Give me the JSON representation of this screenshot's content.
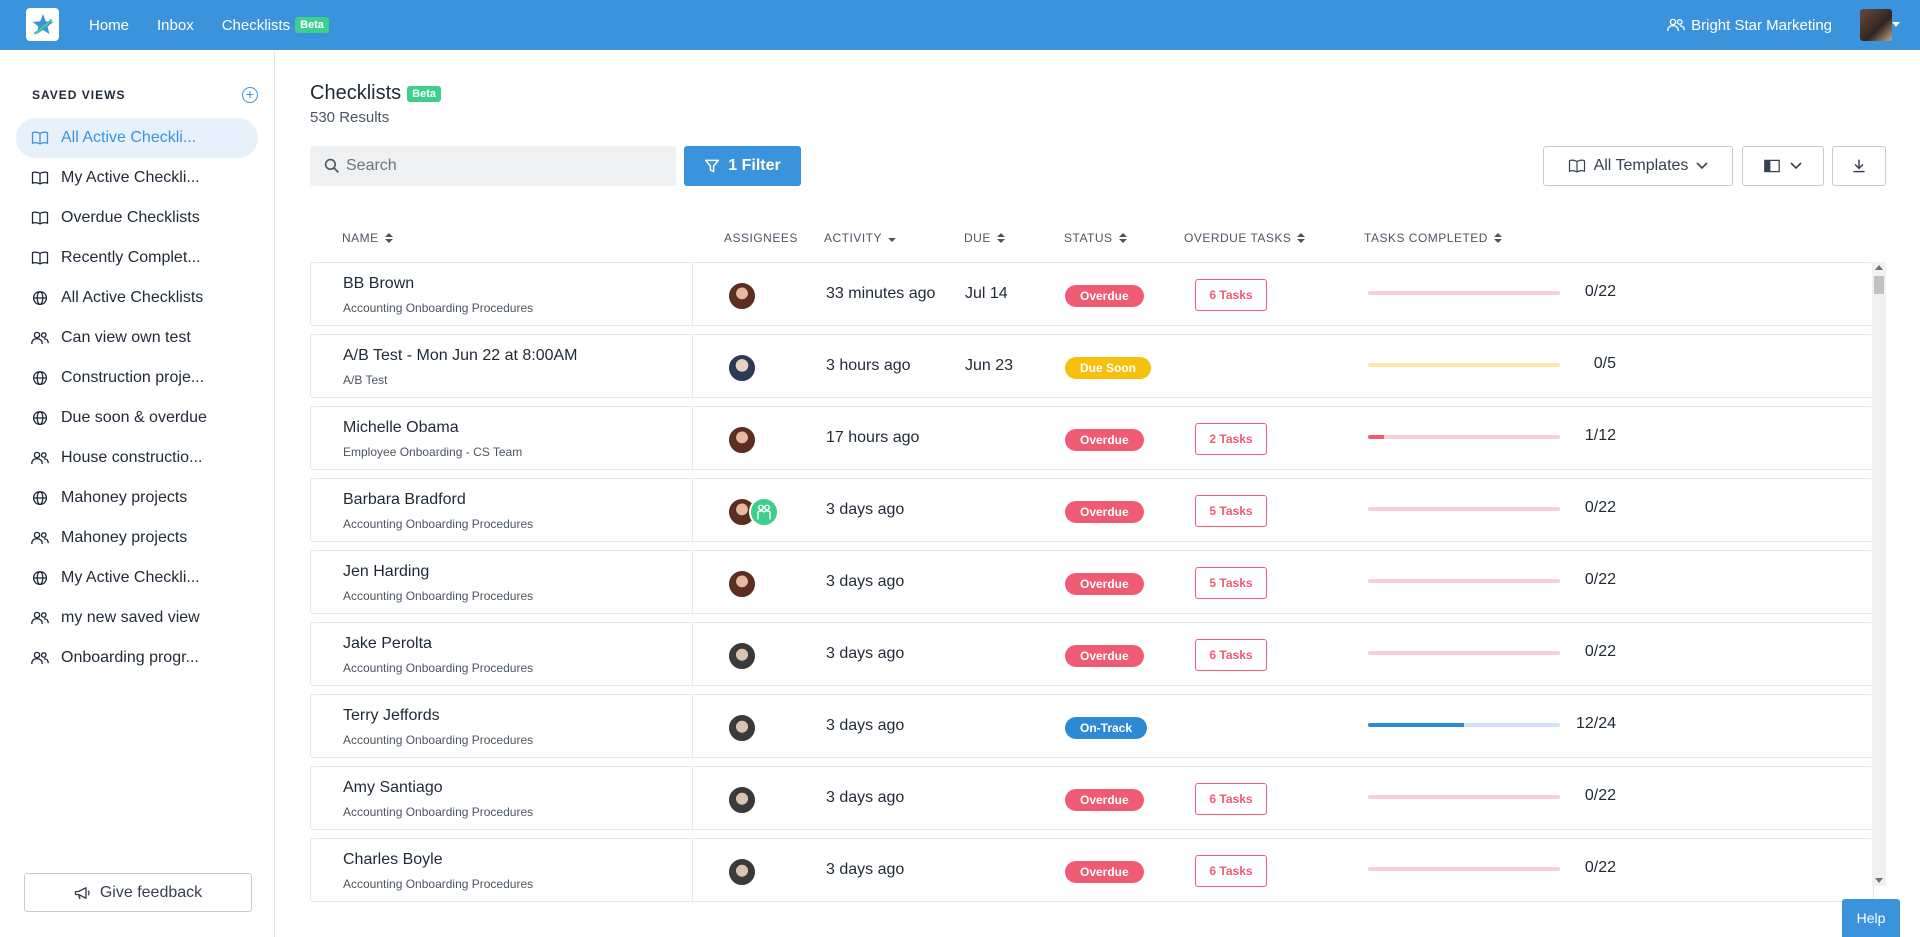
{
  "topbar": {
    "nav": [
      {
        "label": "Home"
      },
      {
        "label": "Inbox"
      },
      {
        "label": "Checklists",
        "badge": "Beta"
      }
    ],
    "org_name": "Bright Star Marketing",
    "accent": "#3b93dc"
  },
  "sidebar": {
    "header": "SAVED VIEWS",
    "items": [
      {
        "label": "All Active Checkli...",
        "icon": "book-icon",
        "active": true
      },
      {
        "label": "My Active Checkli...",
        "icon": "book-icon"
      },
      {
        "label": "Overdue Checklists",
        "icon": "book-icon"
      },
      {
        "label": "Recently Complet...",
        "icon": "book-icon"
      },
      {
        "label": "All Active Checklists",
        "icon": "globe-icon"
      },
      {
        "label": "Can view own test",
        "icon": "users-icon"
      },
      {
        "label": "Construction proje...",
        "icon": "globe-icon"
      },
      {
        "label": "Due soon & overdue",
        "icon": "globe-icon"
      },
      {
        "label": "House constructio...",
        "icon": "users-icon"
      },
      {
        "label": "Mahoney projects",
        "icon": "globe-icon"
      },
      {
        "label": "Mahoney projects",
        "icon": "users-icon"
      },
      {
        "label": "My Active Checkli...",
        "icon": "globe-icon"
      },
      {
        "label": "my new saved view",
        "icon": "users-icon"
      },
      {
        "label": "Onboarding progr...",
        "icon": "users-icon"
      }
    ],
    "feedback_label": "Give feedback"
  },
  "main": {
    "title": "Checklists",
    "title_badge": "Beta",
    "results": "530 Results",
    "search_placeholder": "Search",
    "filter_label": "1 Filter",
    "templates_label": "All Templates",
    "columns": {
      "name": "NAME",
      "assignees": "ASSIGNEES",
      "activity": "ACTIVITY",
      "due": "DUE",
      "status": "STATUS",
      "overdue_tasks": "OVERDUE TASKS",
      "tasks_completed": "TASKS COMPLETED"
    },
    "rows": [
      {
        "name": "BB Brown",
        "template": "Accounting Onboarding Procedures",
        "avatars": [
          "f1"
        ],
        "activity": "33 minutes ago",
        "due": "Jul 14",
        "status": "Overdue",
        "status_kind": "overdue",
        "overdue_tasks": "6 Tasks",
        "completed": "0/22",
        "progress": 0.0
      },
      {
        "name": "A/B Test - Mon Jun 22 at 8:00AM",
        "template": "A/B Test",
        "avatars": [
          "m1"
        ],
        "activity": "3 hours ago",
        "due": "Jun 23",
        "status": "Due Soon",
        "status_kind": "soon",
        "overdue_tasks": "",
        "completed": "0/5",
        "progress": 0.0
      },
      {
        "name": "Michelle Obama",
        "template": "Employee Onboarding - CS Team",
        "avatars": [
          "f1"
        ],
        "activity": "17 hours ago",
        "due": "",
        "status": "Overdue",
        "status_kind": "overdue",
        "overdue_tasks": "2 Tasks",
        "completed": "1/12",
        "progress": 0.083
      },
      {
        "name": "Barbara Bradford",
        "template": "Accounting Onboarding Procedures",
        "avatars": [
          "f1",
          "team"
        ],
        "activity": "3 days ago",
        "due": "",
        "status": "Overdue",
        "status_kind": "overdue",
        "overdue_tasks": "5 Tasks",
        "completed": "0/22",
        "progress": 0.0
      },
      {
        "name": "Jen Harding",
        "template": "Accounting Onboarding Procedures",
        "avatars": [
          "f1"
        ],
        "activity": "3 days ago",
        "due": "",
        "status": "Overdue",
        "status_kind": "overdue",
        "overdue_tasks": "5 Tasks",
        "completed": "0/22",
        "progress": 0.0
      },
      {
        "name": "Jake Perolta",
        "template": "Accounting Onboarding Procedures",
        "avatars": [
          "m2"
        ],
        "activity": "3 days ago",
        "due": "",
        "status": "Overdue",
        "status_kind": "overdue",
        "overdue_tasks": "6 Tasks",
        "completed": "0/22",
        "progress": 0.0
      },
      {
        "name": "Terry Jeffords",
        "template": "Accounting Onboarding Procedures",
        "avatars": [
          "m2"
        ],
        "activity": "3 days ago",
        "due": "",
        "status": "On-Track",
        "status_kind": "track",
        "overdue_tasks": "",
        "completed": "12/24",
        "progress": 0.5
      },
      {
        "name": "Amy Santiago",
        "template": "Accounting Onboarding Procedures",
        "avatars": [
          "m2"
        ],
        "activity": "3 days ago",
        "due": "",
        "status": "Overdue",
        "status_kind": "overdue",
        "overdue_tasks": "6 Tasks",
        "completed": "0/22",
        "progress": 0.0
      },
      {
        "name": "Charles Boyle",
        "template": "Accounting Onboarding Procedures",
        "avatars": [
          "m2"
        ],
        "activity": "3 days ago",
        "due": "",
        "status": "Overdue",
        "status_kind": "overdue",
        "overdue_tasks": "6 Tasks",
        "completed": "0/22",
        "progress": 0.0
      }
    ]
  },
  "help_label": "Help"
}
